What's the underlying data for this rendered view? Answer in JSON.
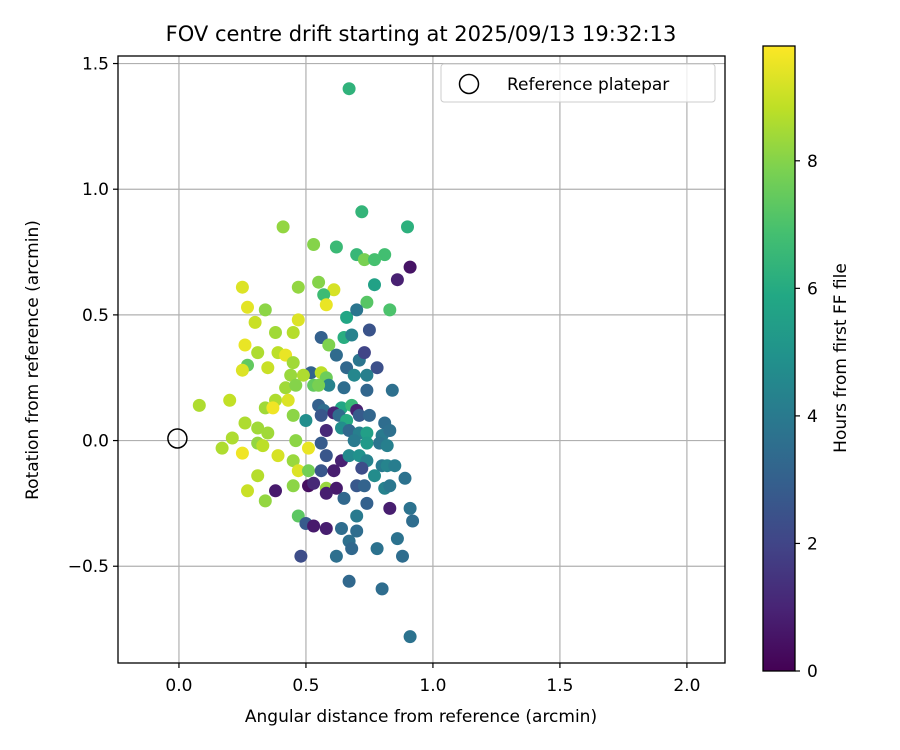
{
  "chart_data": {
    "type": "scatter",
    "title": "FOV centre drift starting at 2025/09/13 19:32:13",
    "xlabel": "Angular distance from reference (arcmin)",
    "ylabel": "Rotation from reference (arcmin)",
    "xlim": [
      -0.24,
      2.15
    ],
    "ylim": [
      -0.885,
      1.53
    ],
    "xticks": [
      0.0,
      0.5,
      1.0,
      1.5,
      2.0
    ],
    "xtick_labels": [
      "0.0",
      "0.5",
      "1.0",
      "1.5",
      "2.0"
    ],
    "yticks": [
      -0.5,
      0.0,
      0.5,
      1.0,
      1.5
    ],
    "ytick_labels": [
      "−0.5",
      "0.0",
      "0.5",
      "1.0",
      "1.5"
    ],
    "grid": true,
    "legend": {
      "position": "top-right",
      "entries": [
        "Reference platepar"
      ]
    },
    "reference_point": {
      "x": 0.0,
      "y": 0.0,
      "label": "Reference platepar"
    },
    "colorbar": {
      "label": "Hours from first FF file",
      "colormap": "viridis",
      "range": [
        0,
        9.8
      ],
      "ticks": [
        0,
        2,
        4,
        6,
        8
      ],
      "tick_labels": [
        "0",
        "2",
        "4",
        "6",
        "8"
      ]
    },
    "series": [
      {
        "name": "FOV centre drift",
        "points": [
          [
            0.67,
            1.4,
            6.3
          ],
          [
            0.72,
            0.91,
            6.4
          ],
          [
            0.9,
            0.85,
            6.2
          ],
          [
            0.41,
            0.85,
            8.2
          ],
          [
            0.53,
            0.78,
            8.0
          ],
          [
            0.62,
            0.77,
            6.6
          ],
          [
            0.7,
            0.74,
            6.5
          ],
          [
            0.81,
            0.74,
            6.8
          ],
          [
            0.73,
            0.72,
            7.8
          ],
          [
            0.77,
            0.72,
            6.9
          ],
          [
            0.91,
            0.69,
            0.5
          ],
          [
            0.86,
            0.64,
            0.9
          ],
          [
            0.25,
            0.61,
            9.3
          ],
          [
            0.47,
            0.61,
            8.2
          ],
          [
            0.55,
            0.63,
            8.0
          ],
          [
            0.61,
            0.6,
            9.2
          ],
          [
            0.57,
            0.58,
            6.7
          ],
          [
            0.77,
            0.62,
            5.6
          ],
          [
            0.58,
            0.54,
            9.5
          ],
          [
            0.27,
            0.53,
            9.4
          ],
          [
            0.34,
            0.52,
            8.1
          ],
          [
            0.83,
            0.52,
            7.0
          ],
          [
            0.74,
            0.55,
            7.2
          ],
          [
            0.66,
            0.49,
            5.8
          ],
          [
            0.7,
            0.52,
            3.8
          ],
          [
            0.3,
            0.47,
            9.0
          ],
          [
            0.47,
            0.48,
            9.3
          ],
          [
            0.38,
            0.43,
            8.4
          ],
          [
            0.45,
            0.43,
            8.7
          ],
          [
            0.75,
            0.44,
            2.5
          ],
          [
            0.65,
            0.41,
            6.1
          ],
          [
            0.56,
            0.41,
            3.0
          ],
          [
            0.68,
            0.42,
            4.3
          ],
          [
            0.59,
            0.38,
            7.9
          ],
          [
            0.26,
            0.38,
            9.5
          ],
          [
            0.31,
            0.35,
            8.6
          ],
          [
            0.39,
            0.35,
            8.8
          ],
          [
            0.62,
            0.34,
            3.4
          ],
          [
            0.42,
            0.34,
            9.5
          ],
          [
            0.45,
            0.31,
            8.4
          ],
          [
            0.27,
            0.3,
            7.4
          ],
          [
            0.35,
            0.29,
            9.0
          ],
          [
            0.66,
            0.29,
            3.3
          ],
          [
            0.71,
            0.32,
            3.8
          ],
          [
            0.73,
            0.35,
            2.0
          ],
          [
            0.78,
            0.29,
            2.4
          ],
          [
            0.25,
            0.28,
            9.3
          ],
          [
            0.52,
            0.27,
            3.1
          ],
          [
            0.56,
            0.27,
            8.8
          ],
          [
            0.69,
            0.26,
            4.5
          ],
          [
            0.74,
            0.26,
            4.2
          ],
          [
            0.44,
            0.26,
            8.3
          ],
          [
            0.49,
            0.26,
            8.6
          ],
          [
            0.58,
            0.25,
            7.6
          ],
          [
            0.59,
            0.22,
            4.3
          ],
          [
            0.42,
            0.21,
            8.4
          ],
          [
            0.46,
            0.22,
            8.0
          ],
          [
            0.53,
            0.22,
            7.4
          ],
          [
            0.55,
            0.22,
            7.8
          ],
          [
            0.65,
            0.21,
            3.5
          ],
          [
            0.74,
            0.2,
            3.2
          ],
          [
            0.84,
            0.2,
            3.6
          ],
          [
            0.2,
            0.16,
            8.9
          ],
          [
            0.08,
            0.14,
            8.6
          ],
          [
            0.38,
            0.16,
            8.6
          ],
          [
            0.43,
            0.16,
            9.3
          ],
          [
            0.55,
            0.14,
            3.0
          ],
          [
            0.57,
            0.12,
            3.5
          ],
          [
            0.64,
            0.13,
            5.8
          ],
          [
            0.68,
            0.14,
            6.5
          ],
          [
            0.7,
            0.12,
            0.9
          ],
          [
            0.34,
            0.13,
            8.4
          ],
          [
            0.37,
            0.13,
            9.6
          ],
          [
            0.45,
            0.1,
            8.1
          ],
          [
            0.5,
            0.08,
            4.8
          ],
          [
            0.56,
            0.1,
            2.6
          ],
          [
            0.61,
            0.11,
            1.0
          ],
          [
            0.63,
            0.1,
            3.4
          ],
          [
            0.66,
            0.08,
            6.0
          ],
          [
            0.71,
            0.1,
            2.8
          ],
          [
            0.75,
            0.1,
            3.2
          ],
          [
            0.81,
            0.07,
            3.5
          ],
          [
            0.31,
            0.05,
            8.4
          ],
          [
            0.26,
            0.07,
            8.6
          ],
          [
            0.64,
            0.05,
            4.8
          ],
          [
            0.67,
            0.04,
            3.3
          ],
          [
            0.71,
            0.03,
            4.2
          ],
          [
            0.74,
            0.03,
            5.5
          ],
          [
            0.8,
            0.02,
            4.0
          ],
          [
            0.83,
            0.04,
            3.6
          ],
          [
            0.58,
            0.04,
            1.1
          ],
          [
            0.35,
            0.03,
            8.4
          ],
          [
            0.21,
            0.01,
            8.6
          ],
          [
            0.31,
            -0.01,
            8.2
          ],
          [
            0.33,
            -0.02,
            8.8
          ],
          [
            0.46,
            0.0,
            8.1
          ],
          [
            0.51,
            -0.03,
            9.5
          ],
          [
            0.56,
            -0.01,
            2.8
          ],
          [
            0.69,
            0.0,
            4.0
          ],
          [
            0.74,
            -0.01,
            5.3
          ],
          [
            0.79,
            -0.01,
            3.8
          ],
          [
            0.82,
            -0.02,
            4.2
          ],
          [
            0.17,
            -0.03,
            8.6
          ],
          [
            0.25,
            -0.05,
            9.6
          ],
          [
            0.39,
            -0.06,
            9.2
          ],
          [
            0.45,
            -0.08,
            8.3
          ],
          [
            0.58,
            -0.06,
            2.6
          ],
          [
            0.64,
            -0.08,
            0.9
          ],
          [
            0.67,
            -0.06,
            4.6
          ],
          [
            0.71,
            -0.06,
            4.9
          ],
          [
            0.74,
            -0.08,
            4.3
          ],
          [
            0.8,
            -0.1,
            4.0
          ],
          [
            0.82,
            -0.1,
            4.4
          ],
          [
            0.85,
            -0.1,
            4.1
          ],
          [
            0.47,
            -0.12,
            9.3
          ],
          [
            0.51,
            -0.12,
            7.7
          ],
          [
            0.56,
            -0.12,
            2.6
          ],
          [
            0.61,
            -0.12,
            0.8
          ],
          [
            0.72,
            -0.11,
            2.3
          ],
          [
            0.77,
            -0.14,
            4.7
          ],
          [
            0.89,
            -0.15,
            3.7
          ],
          [
            0.31,
            -0.14,
            8.7
          ],
          [
            0.45,
            -0.18,
            8.1
          ],
          [
            0.51,
            -0.18,
            0.4
          ],
          [
            0.53,
            -0.17,
            1.1
          ],
          [
            0.58,
            -0.19,
            8.3
          ],
          [
            0.62,
            -0.19,
            0.7
          ],
          [
            0.7,
            -0.18,
            2.7
          ],
          [
            0.73,
            -0.18,
            3.1
          ],
          [
            0.81,
            -0.19,
            4.3
          ],
          [
            0.83,
            -0.18,
            3.9
          ],
          [
            0.27,
            -0.2,
            9.0
          ],
          [
            0.38,
            -0.2,
            0.7
          ],
          [
            0.58,
            -0.21,
            0.8
          ],
          [
            0.65,
            -0.23,
            3.3
          ],
          [
            0.34,
            -0.24,
            8.2
          ],
          [
            0.74,
            -0.25,
            3.0
          ],
          [
            0.83,
            -0.27,
            0.8
          ],
          [
            0.91,
            -0.27,
            3.7
          ],
          [
            0.47,
            -0.3,
            7.3
          ],
          [
            0.7,
            -0.3,
            4.0
          ],
          [
            0.92,
            -0.32,
            3.5
          ],
          [
            0.5,
            -0.33,
            2.8
          ],
          [
            0.53,
            -0.34,
            0.7
          ],
          [
            0.58,
            -0.35,
            0.8
          ],
          [
            0.64,
            -0.35,
            3.5
          ],
          [
            0.7,
            -0.36,
            3.5
          ],
          [
            0.86,
            -0.39,
            3.7
          ],
          [
            0.67,
            -0.4,
            3.6
          ],
          [
            0.68,
            -0.43,
            3.3
          ],
          [
            0.78,
            -0.43,
            3.7
          ],
          [
            0.88,
            -0.46,
            3.5
          ],
          [
            0.48,
            -0.46,
            2.3
          ],
          [
            0.62,
            -0.46,
            3.6
          ],
          [
            0.67,
            -0.56,
            3.3
          ],
          [
            0.8,
            -0.59,
            3.5
          ],
          [
            0.91,
            -0.78,
            3.7
          ]
        ]
      }
    ]
  }
}
